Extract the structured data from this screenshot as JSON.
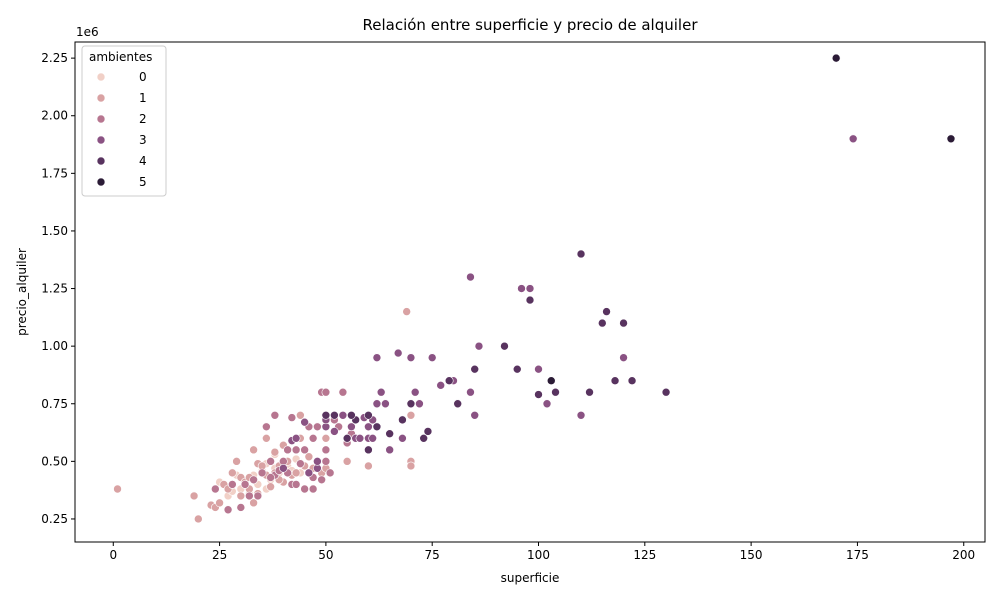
{
  "chart_data": {
    "type": "scatter",
    "title": "Relación entre superficie y precio de alquiler",
    "xlabel": "superficie",
    "ylabel": "precio_alquiler",
    "y_offset_label": "1e6",
    "xlim": [
      -9,
      205
    ],
    "ylim": [
      0.15,
      2.32
    ],
    "xticks": [
      0,
      25,
      50,
      75,
      100,
      125,
      150,
      175,
      200
    ],
    "yticks": [
      0.25,
      0.5,
      0.75,
      1.0,
      1.25,
      1.5,
      1.75,
      2.0,
      2.25
    ],
    "ytick_labels": [
      "0.25",
      "0.50",
      "0.75",
      "1.00",
      "1.25",
      "1.50",
      "1.75",
      "2.00",
      "2.25"
    ],
    "grid": false,
    "legend": {
      "title": "ambientes",
      "placement": "top-left",
      "entries": [
        {
          "label": "0",
          "color": "#f1d0c7"
        },
        {
          "label": "1",
          "color": "#d9a2a3"
        },
        {
          "label": "2",
          "color": "#b77690"
        },
        {
          "label": "3",
          "color": "#8a5283"
        },
        {
          "label": "4",
          "color": "#58335f"
        },
        {
          "label": "5",
          "color": "#2b1b36"
        }
      ]
    },
    "colors": [
      "#f1d0c7",
      "#d9a2a3",
      "#b77690",
      "#8a5283",
      "#58335f",
      "#2b1b36"
    ],
    "series": [
      {
        "name": "0",
        "points": [
          [
            27,
            0.35
          ],
          [
            28,
            0.37
          ],
          [
            30,
            0.38
          ],
          [
            31,
            0.41
          ],
          [
            32,
            0.36
          ],
          [
            33,
            0.44
          ],
          [
            34,
            0.4
          ],
          [
            35,
            0.46
          ],
          [
            36,
            0.49
          ],
          [
            37,
            0.42
          ],
          [
            38,
            0.47
          ],
          [
            39,
            0.45
          ],
          [
            40,
            0.5
          ],
          [
            41,
            0.48
          ],
          [
            42,
            0.46
          ],
          [
            43,
            0.51
          ],
          [
            44,
            0.45
          ],
          [
            29,
            0.44
          ],
          [
            25,
            0.41
          ],
          [
            36,
            0.38
          ],
          [
            38,
            0.53
          ]
        ]
      },
      {
        "name": "1",
        "points": [
          [
            1,
            0.38
          ],
          [
            19,
            0.35
          ],
          [
            20,
            0.25
          ],
          [
            23,
            0.31
          ],
          [
            24,
            0.3
          ],
          [
            25,
            0.32
          ],
          [
            26,
            0.4
          ],
          [
            27,
            0.38
          ],
          [
            28,
            0.45
          ],
          [
            29,
            0.5
          ],
          [
            30,
            0.35
          ],
          [
            30,
            0.43
          ],
          [
            31,
            0.41
          ],
          [
            32,
            0.38
          ],
          [
            33,
            0.55
          ],
          [
            33,
            0.32
          ],
          [
            34,
            0.49
          ],
          [
            35,
            0.48
          ],
          [
            36,
            0.6
          ],
          [
            36,
            0.44
          ],
          [
            37,
            0.39
          ],
          [
            38,
            0.54
          ],
          [
            38,
            0.45
          ],
          [
            39,
            0.48
          ],
          [
            40,
            0.57
          ],
          [
            40,
            0.41
          ],
          [
            41,
            0.5
          ],
          [
            42,
            0.44
          ],
          [
            43,
            0.45
          ],
          [
            44,
            0.6
          ],
          [
            44,
            0.7
          ],
          [
            45,
            0.48
          ],
          [
            46,
            0.52
          ],
          [
            47,
            0.47
          ],
          [
            48,
            0.5
          ],
          [
            49,
            0.45
          ],
          [
            50,
            0.6
          ],
          [
            50,
            0.47
          ],
          [
            55,
            0.5
          ],
          [
            60,
            0.48
          ],
          [
            69,
            1.15
          ],
          [
            70,
            0.7
          ],
          [
            70,
            0.5
          ],
          [
            70,
            0.48
          ],
          [
            34,
            0.36
          ],
          [
            28,
            0.4
          ],
          [
            32,
            0.43
          ],
          [
            39,
            0.42
          ]
        ]
      },
      {
        "name": "2",
        "points": [
          [
            24,
            0.38
          ],
          [
            27,
            0.29
          ],
          [
            28,
            0.4
          ],
          [
            30,
            0.3
          ],
          [
            31,
            0.4
          ],
          [
            32,
            0.35
          ],
          [
            33,
            0.42
          ],
          [
            34,
            0.35
          ],
          [
            35,
            0.45
          ],
          [
            36,
            0.65
          ],
          [
            37,
            0.5
          ],
          [
            38,
            0.7
          ],
          [
            38,
            0.44
          ],
          [
            39,
            0.46
          ],
          [
            40,
            0.5
          ],
          [
            41,
            0.45
          ],
          [
            42,
            0.4
          ],
          [
            42,
            0.69
          ],
          [
            43,
            0.55
          ],
          [
            44,
            0.49
          ],
          [
            45,
            0.55
          ],
          [
            45,
            0.38
          ],
          [
            46,
            0.65
          ],
          [
            47,
            0.6
          ],
          [
            47,
            0.43
          ],
          [
            48,
            0.65
          ],
          [
            49,
            0.8
          ],
          [
            49,
            0.42
          ],
          [
            50,
            0.55
          ],
          [
            50,
            0.5
          ],
          [
            50,
            0.8
          ],
          [
            51,
            0.45
          ],
          [
            52,
            0.68
          ],
          [
            53,
            0.65
          ],
          [
            54,
            0.8
          ],
          [
            55,
            0.58
          ],
          [
            56,
            0.62
          ],
          [
            47,
            0.38
          ],
          [
            43,
            0.4
          ],
          [
            41,
            0.55
          ],
          [
            37,
            0.43
          ]
        ]
      },
      {
        "name": "3",
        "points": [
          [
            40,
            0.47
          ],
          [
            42,
            0.59
          ],
          [
            43,
            0.6
          ],
          [
            45,
            0.67
          ],
          [
            46,
            0.45
          ],
          [
            48,
            0.47
          ],
          [
            48,
            0.5
          ],
          [
            50,
            0.65
          ],
          [
            50,
            0.68
          ],
          [
            52,
            0.63
          ],
          [
            54,
            0.7
          ],
          [
            55,
            0.6
          ],
          [
            56,
            0.65
          ],
          [
            57,
            0.6
          ],
          [
            58,
            0.6
          ],
          [
            59,
            0.69
          ],
          [
            60,
            0.65
          ],
          [
            60,
            0.6
          ],
          [
            61,
            0.68
          ],
          [
            62,
            0.95
          ],
          [
            62,
            0.75
          ],
          [
            63,
            0.8
          ],
          [
            65,
            0.55
          ],
          [
            67,
            0.97
          ],
          [
            68,
            0.6
          ],
          [
            70,
            0.95
          ],
          [
            71,
            0.8
          ],
          [
            72,
            0.75
          ],
          [
            75,
            0.95
          ],
          [
            77,
            0.83
          ],
          [
            80,
            0.85
          ],
          [
            84,
            1.3
          ],
          [
            84,
            0.8
          ],
          [
            85,
            0.7
          ],
          [
            86,
            1.0
          ],
          [
            96,
            1.25
          ],
          [
            98,
            1.25
          ],
          [
            100,
            0.9
          ],
          [
            102,
            0.75
          ],
          [
            110,
            0.7
          ],
          [
            120,
            0.95
          ],
          [
            174,
            1.9
          ],
          [
            61,
            0.6
          ],
          [
            64,
            0.75
          ]
        ]
      },
      {
        "name": "4",
        "points": [
          [
            50,
            0.7
          ],
          [
            52,
            0.7
          ],
          [
            55,
            0.6
          ],
          [
            57,
            0.68
          ],
          [
            60,
            0.7
          ],
          [
            62,
            0.65
          ],
          [
            65,
            0.62
          ],
          [
            68,
            0.68
          ],
          [
            70,
            0.75
          ],
          [
            73,
            0.6
          ],
          [
            74,
            0.63
          ],
          [
            79,
            0.85
          ],
          [
            81,
            0.75
          ],
          [
            85,
            0.9
          ],
          [
            92,
            1.0
          ],
          [
            95,
            0.9
          ],
          [
            98,
            1.2
          ],
          [
            100,
            0.79
          ],
          [
            104,
            0.8
          ],
          [
            110,
            1.4
          ],
          [
            112,
            0.8
          ],
          [
            115,
            1.1
          ],
          [
            116,
            1.15
          ],
          [
            118,
            0.85
          ],
          [
            120,
            1.1
          ],
          [
            122,
            0.85
          ],
          [
            130,
            0.8
          ],
          [
            56,
            0.7
          ],
          [
            60,
            0.55
          ]
        ]
      },
      {
        "name": "5",
        "points": [
          [
            103,
            0.85
          ],
          [
            170,
            2.25
          ],
          [
            197,
            1.9
          ]
        ]
      }
    ]
  }
}
